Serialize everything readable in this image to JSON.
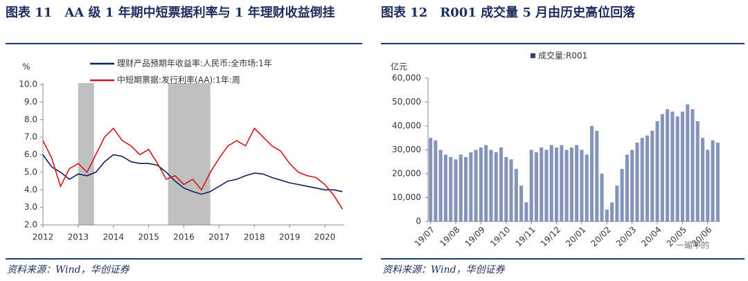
{
  "chart_data": [
    {
      "type": "line",
      "label": "图表 11",
      "title": "AA 级 1 年期中短票据利率与 1 年理财收益倒挂",
      "source": "资料来源：Wind，华创证券",
      "ylabel": "%",
      "x": [
        2012.0,
        2012.25,
        2012.5,
        2012.75,
        2013.0,
        2013.25,
        2013.5,
        2013.75,
        2014.0,
        2014.25,
        2014.5,
        2014.75,
        2015.0,
        2015.25,
        2015.5,
        2015.75,
        2016.0,
        2016.25,
        2016.5,
        2016.75,
        2017.0,
        2017.25,
        2017.5,
        2017.75,
        2018.0,
        2018.25,
        2018.5,
        2018.75,
        2019.0,
        2019.25,
        2019.5,
        2019.75,
        2020.0,
        2020.25,
        2020.5
      ],
      "series": [
        {
          "name": "理财产品预期年收益率:人民币:全市场:1年",
          "color": "#0d1f5c",
          "values": [
            6.0,
            5.3,
            5.0,
            4.6,
            4.9,
            4.8,
            5.0,
            5.6,
            6.0,
            5.9,
            5.6,
            5.5,
            5.5,
            5.4,
            5.0,
            4.5,
            4.1,
            3.9,
            3.75,
            3.9,
            4.2,
            4.5,
            4.6,
            4.8,
            4.95,
            4.9,
            4.7,
            4.55,
            4.4,
            4.3,
            4.2,
            4.1,
            4.0,
            4.0,
            3.9
          ]
        },
        {
          "name": "中短期票据:发行利率(AA):1年:周",
          "color": "#d0141b",
          "values": [
            6.8,
            5.8,
            4.2,
            5.2,
            5.5,
            5.0,
            6.0,
            7.0,
            7.5,
            6.8,
            6.5,
            6.0,
            6.3,
            5.5,
            4.6,
            4.8,
            4.3,
            4.6,
            4.0,
            5.0,
            5.8,
            6.5,
            6.8,
            6.5,
            7.5,
            7.0,
            6.5,
            6.2,
            5.5,
            5.0,
            4.8,
            4.7,
            4.3,
            3.7,
            2.9
          ]
        }
      ],
      "shaded": [
        [
          2013.0,
          2013.45
        ],
        [
          2015.55,
          2016.75
        ]
      ],
      "xlim": [
        2012,
        2020.55
      ],
      "xticks": [
        2012,
        2013,
        2014,
        2015,
        2016,
        2017,
        2018,
        2019,
        2020
      ],
      "ylim": [
        2,
        10
      ],
      "yticks": [
        {
          "value": 2,
          "label": "2.0"
        },
        {
          "value": 3,
          "label": "3.0"
        },
        {
          "value": 4,
          "label": "4.0"
        },
        {
          "value": 5,
          "label": "5.0"
        },
        {
          "value": 6,
          "label": "6.0"
        },
        {
          "value": 7,
          "label": "7.0"
        },
        {
          "value": 8,
          "label": "8.0"
        },
        {
          "value": 9,
          "label": "9.0"
        },
        {
          "value": 10,
          "label": "10.0"
        }
      ]
    },
    {
      "type": "bar",
      "label": "图表 12",
      "title": "R001 成交量 5 月由历史高位回落",
      "source": "资料来源：Wind，华创证券",
      "watermark": "一瑜中的",
      "ylabel": "亿元",
      "series": [
        {
          "name": "成交量:R001",
          "color": "#8595b9",
          "values": [
            35000,
            34000,
            30000,
            28000,
            27000,
            26000,
            28000,
            27000,
            29000,
            30000,
            31000,
            32000,
            30000,
            29000,
            31000,
            27000,
            26000,
            22000,
            15000,
            8000,
            30000,
            29000,
            31000,
            30000,
            32000,
            31000,
            32000,
            30000,
            31000,
            32000,
            30000,
            28000,
            40000,
            38000,
            20000,
            5000,
            8000,
            15000,
            22000,
            28000,
            30000,
            33000,
            35000,
            36000,
            38000,
            42000,
            45000,
            47000,
            46000,
            44000,
            46000,
            49000,
            47000,
            42000,
            35000,
            30000,
            34000,
            33000
          ]
        }
      ],
      "categories": [
        "19/07",
        null,
        null,
        null,
        null,
        "19/08",
        null,
        null,
        null,
        null,
        "19/09",
        null,
        null,
        null,
        null,
        "19/10",
        null,
        null,
        null,
        null,
        "19/11",
        null,
        null,
        null,
        null,
        "19/12",
        null,
        null,
        null,
        null,
        "20/01",
        null,
        null,
        null,
        null,
        "20/02",
        null,
        null,
        null,
        null,
        "20/03",
        null,
        null,
        null,
        null,
        "20/04",
        null,
        null,
        null,
        null,
        "20/05",
        null,
        null,
        null,
        null,
        "20/06",
        null,
        null
      ],
      "ylim": [
        0,
        60000
      ],
      "yticks": [
        0,
        {
          "value": 10000,
          "label": "10,000"
        },
        {
          "value": 20000,
          "label": "20,000"
        },
        {
          "value": 30000,
          "label": "30,000"
        },
        {
          "value": 40000,
          "label": "40,000"
        },
        {
          "value": 50000,
          "label": "50,000"
        },
        {
          "value": 60000,
          "label": "60,000"
        }
      ]
    }
  ]
}
